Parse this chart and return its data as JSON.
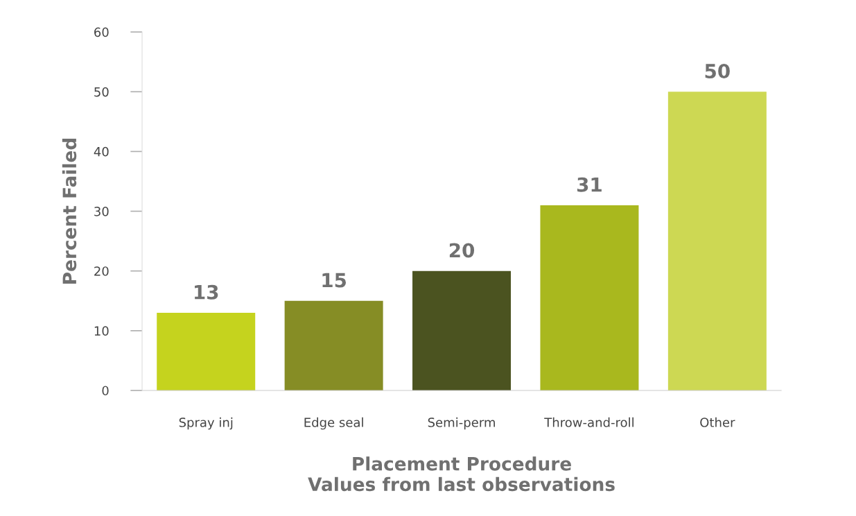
{
  "chart_data": {
    "type": "bar",
    "categories": [
      "Spray inj",
      "Edge seal",
      "Semi-perm",
      "Throw-and-roll",
      "Other"
    ],
    "values": [
      13,
      15,
      20,
      31,
      50
    ],
    "colors": [
      "#c5d31e",
      "#868d25",
      "#4b5320",
      "#a9b81e",
      "#cdd853"
    ],
    "xlabel": "Placement Procedure\nValues from last observations",
    "ylabel": "Percent Failed",
    "ylim": [
      0,
      60
    ],
    "yticks": [
      0,
      10,
      20,
      30,
      40,
      50,
      60
    ],
    "data_labels": true,
    "grid": false,
    "legend": false
  }
}
